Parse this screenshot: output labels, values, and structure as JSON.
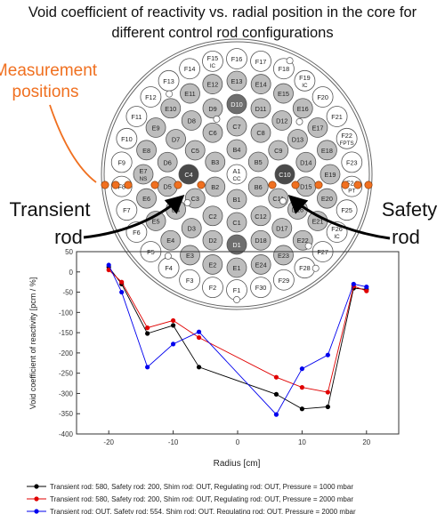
{
  "title_line1": "Void coefficient of reactivity vs. radial position in the core for",
  "title_line2": "different control rod configurations",
  "annotations": {
    "measurement_line1": "Measurement",
    "measurement_line2": "positions",
    "transient_line1": "Transient",
    "transient_line2": "rod",
    "safety_line1": "Safety",
    "safety_line2": "rod"
  },
  "colors": {
    "measurement": "#F07020",
    "fuel_light": "#ffffff",
    "fuel_gray": "#bdbdbd",
    "fuel_dark": "#6e6e6e",
    "rod_dark": "#4a4a4a"
  },
  "core_map": {
    "center": "A1",
    "center_sub": "CC",
    "rings": {
      "B": [
        "B1",
        "B2",
        "B3",
        "B4",
        "B5",
        "B6"
      ],
      "C": [
        "C1",
        "C2",
        "C3",
        "C4",
        "C5",
        "C6",
        "C7",
        "C8",
        "C9",
        "C10",
        "C11",
        "C12"
      ],
      "D": [
        "D1",
        "D2",
        "D3",
        "D4",
        "D5",
        "D6",
        "D7",
        "D8",
        "D9",
        "D10",
        "D11",
        "D12",
        "D13",
        "D14",
        "D15",
        "D16",
        "D17",
        "D18"
      ],
      "E": [
        "E1",
        "E2",
        "E3",
        "E4",
        "E5",
        "E6",
        "E7",
        "E8",
        "E9",
        "E10",
        "E11",
        "E12",
        "E13",
        "E14",
        "E15",
        "E16",
        "E17",
        "E18",
        "E19",
        "E20",
        "E21",
        "E22",
        "E23",
        "E24"
      ],
      "F": [
        "F1",
        "F2",
        "F3",
        "F4",
        "F5",
        "F6",
        "F7",
        "F8",
        "F9",
        "F10",
        "F11",
        "F12",
        "F13",
        "F14",
        "F15",
        "F16",
        "F17",
        "F18",
        "F19",
        "F20",
        "F21",
        "F22",
        "F23",
        "F24",
        "F25",
        "F26",
        "F27",
        "F28",
        "F29",
        "F30"
      ]
    },
    "sublabels": {
      "E7": "NS",
      "F15": "IC",
      "F19": "IC",
      "F22": "FPTS",
      "F24": "PT",
      "F26": "IC"
    },
    "control_rods": [
      "C4",
      "C10",
      "D1",
      "D10"
    ]
  },
  "chart_data": {
    "type": "line",
    "xlabel": "Radius [cm]",
    "ylabel": "Void coefficient of reactivity [pcm / %]",
    "xlim": [
      -25,
      25
    ],
    "ylim": [
      -400,
      50
    ],
    "x_ticks": [
      -20,
      -10,
      0,
      10,
      20
    ],
    "y_ticks": [
      50,
      0,
      -50,
      -100,
      -150,
      -200,
      -250,
      -300,
      -350,
      -400
    ],
    "legend_position": "bottom",
    "series": [
      {
        "name": "Transient rod: 580, Safety rod: 200, Shim rod: OUT, Regulating rod: OUT, Pressure = 1000 mbar",
        "color": "#000000",
        "x": [
          -20,
          -18,
          -14,
          -10,
          -6,
          6,
          10,
          14,
          18,
          20
        ],
        "y": [
          12,
          -30,
          -152,
          -132,
          -235,
          -302,
          -338,
          -333,
          -40,
          -43
        ]
      },
      {
        "name": "Transient rod: 580, Safety rod: 200, Shim rod: OUT, Regulating rod: OUT, Pressure = 2000 mbar",
        "color": "#e00000",
        "x": [
          -20,
          -18,
          -14,
          -10,
          -6,
          6,
          10,
          14,
          18,
          20
        ],
        "y": [
          5,
          -25,
          -138,
          -120,
          -162,
          -260,
          -285,
          -297,
          -35,
          -47
        ]
      },
      {
        "name": "Transient rod: OUT, Safety rod: 554, Shim rod: OUT, Regulating rod: OUT, Pressure = 2000 mbar",
        "color": "#0000ee",
        "x": [
          -20,
          -18,
          -14,
          -10,
          -6,
          6,
          10,
          14,
          18,
          20
        ],
        "y": [
          17,
          -50,
          -235,
          -178,
          -148,
          -352,
          -239,
          -205,
          -30,
          -37
        ]
      }
    ]
  }
}
